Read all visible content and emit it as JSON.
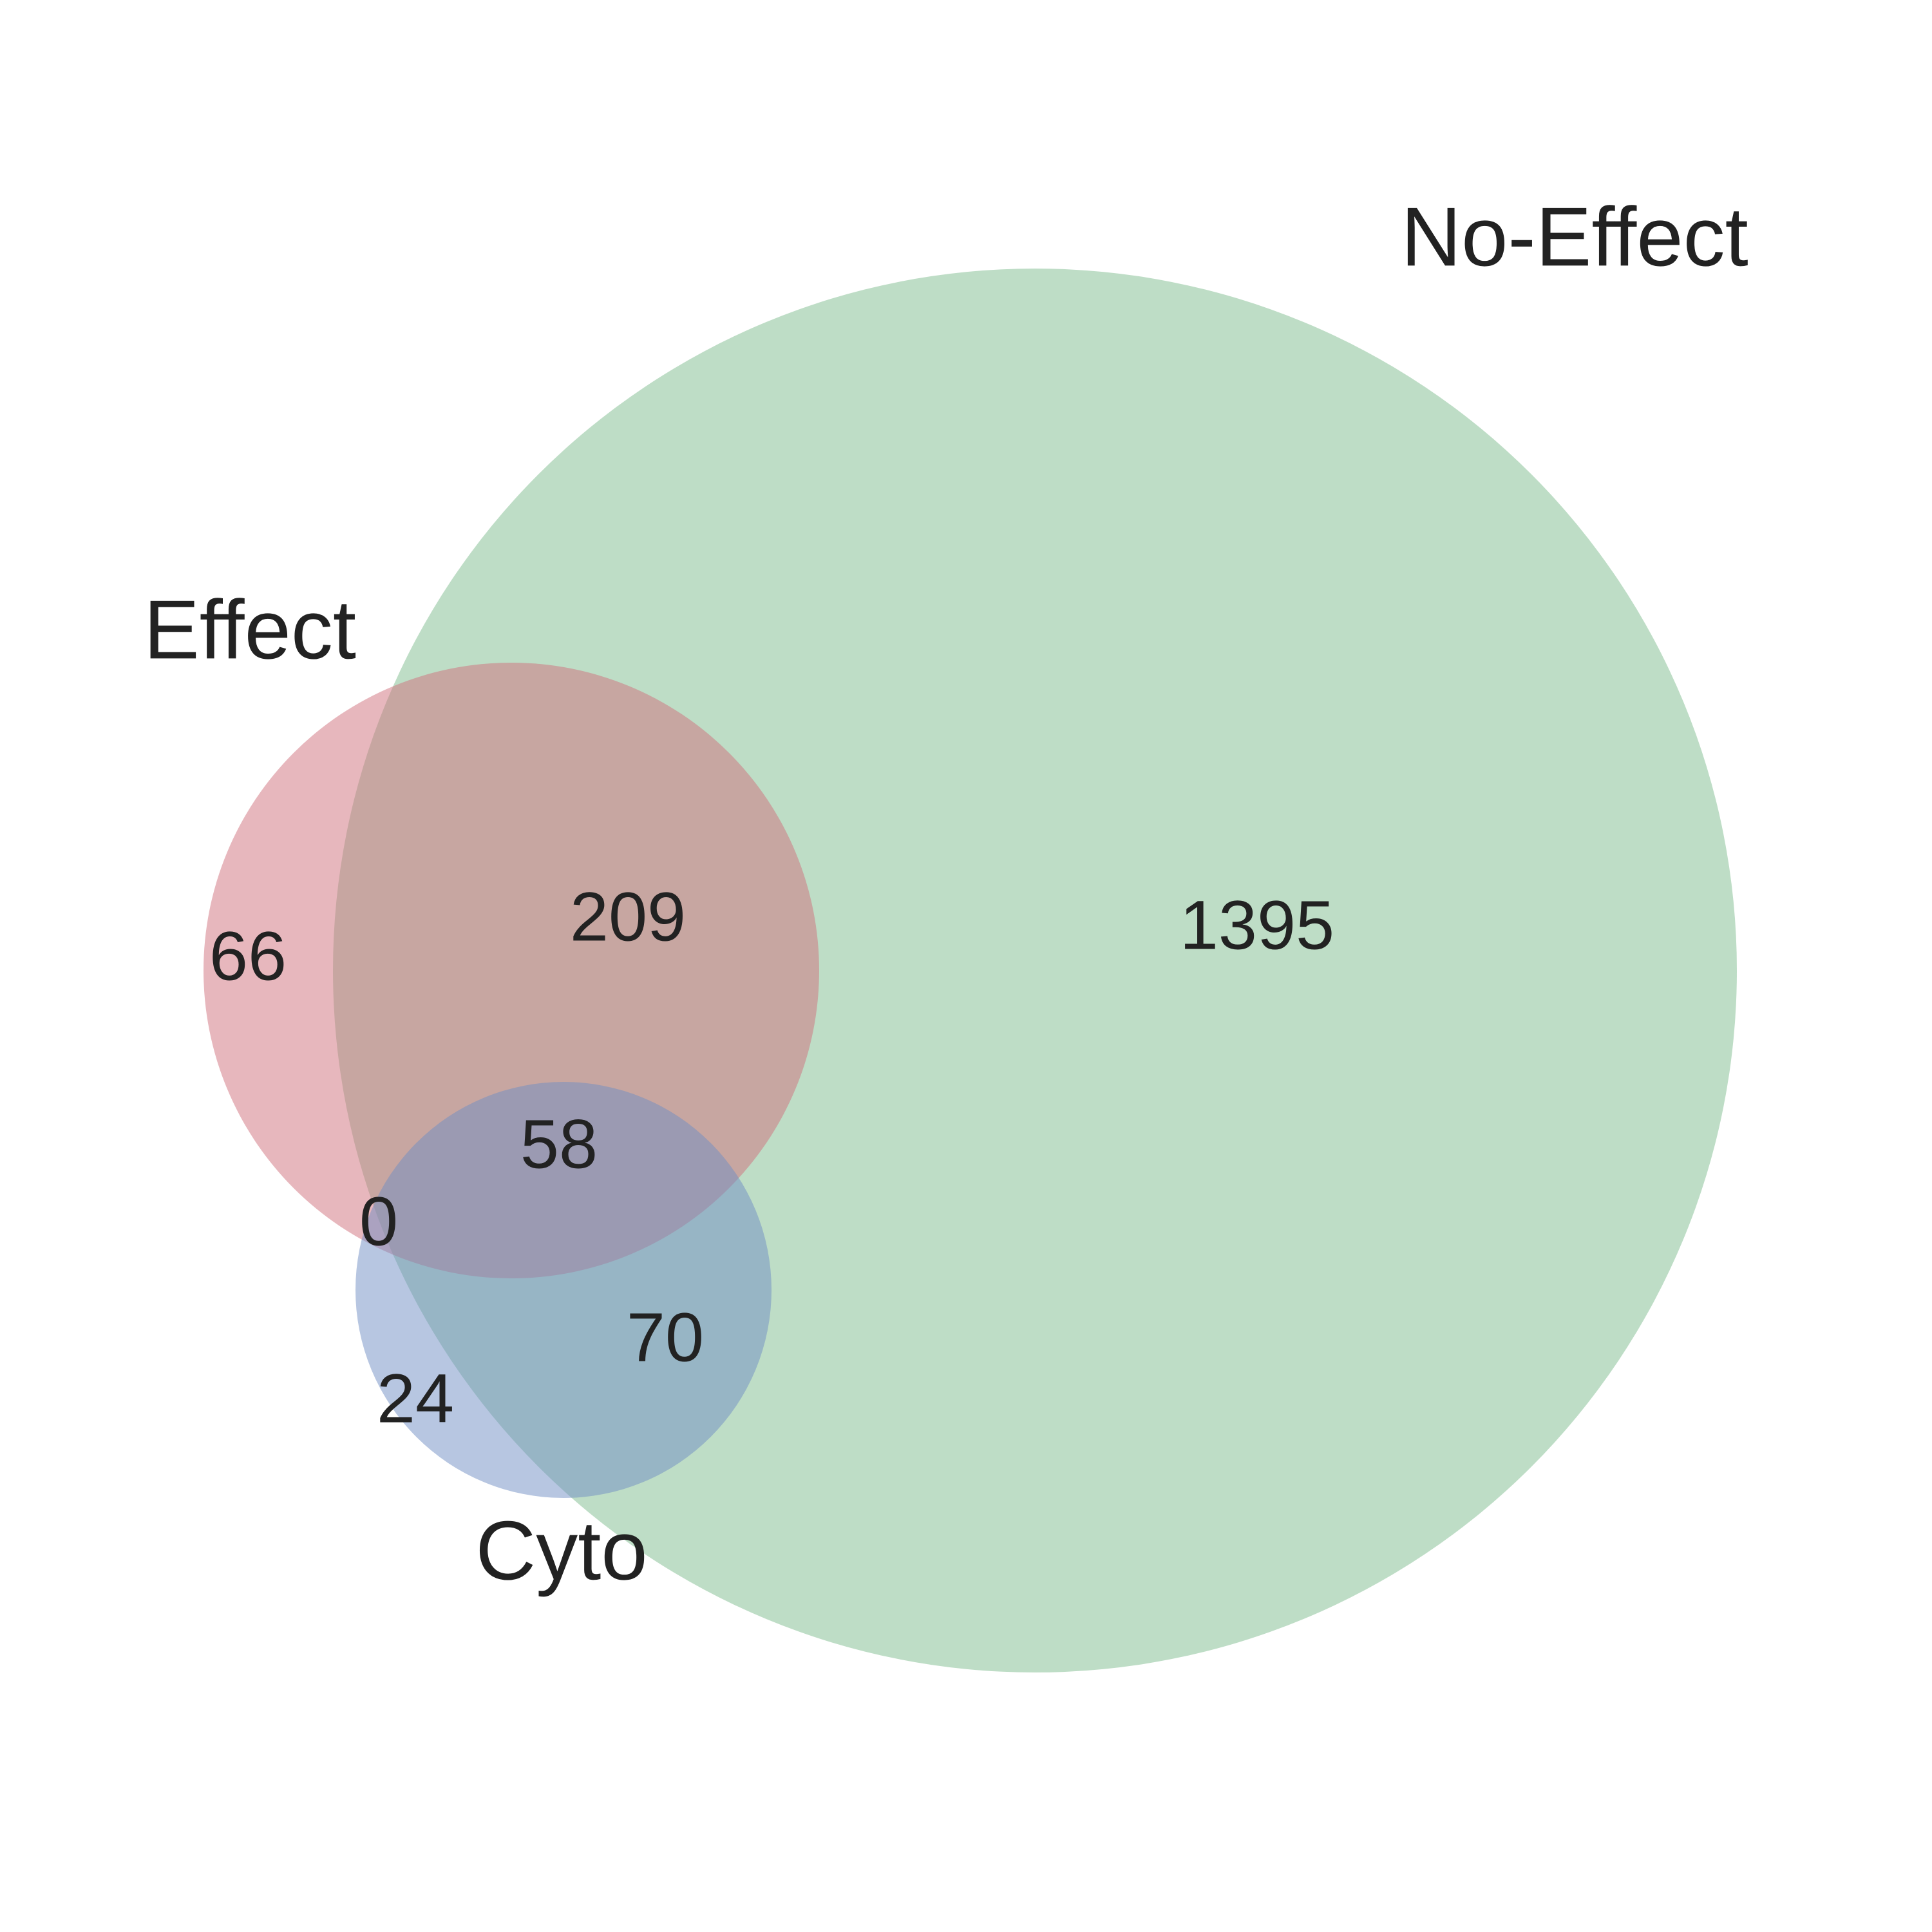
{
  "venn": {
    "sets": [
      {
        "id": "effect",
        "label": "Effect",
        "color": "#D0707B"
      },
      {
        "id": "no_effect",
        "label": "No-Effect",
        "color": "#7DBB8E"
      },
      {
        "id": "cyto",
        "label": "Cyto",
        "color": "#6F8EC4"
      }
    ],
    "regions": {
      "effect_only": "66",
      "effect_no_effect": "209",
      "no_effect_only": "1395",
      "effect_no_effect_cyto": "58",
      "effect_cyto": "0",
      "no_effect_cyto": "70",
      "cyto_only": "24"
    },
    "fill_opacity": 0.5
  }
}
